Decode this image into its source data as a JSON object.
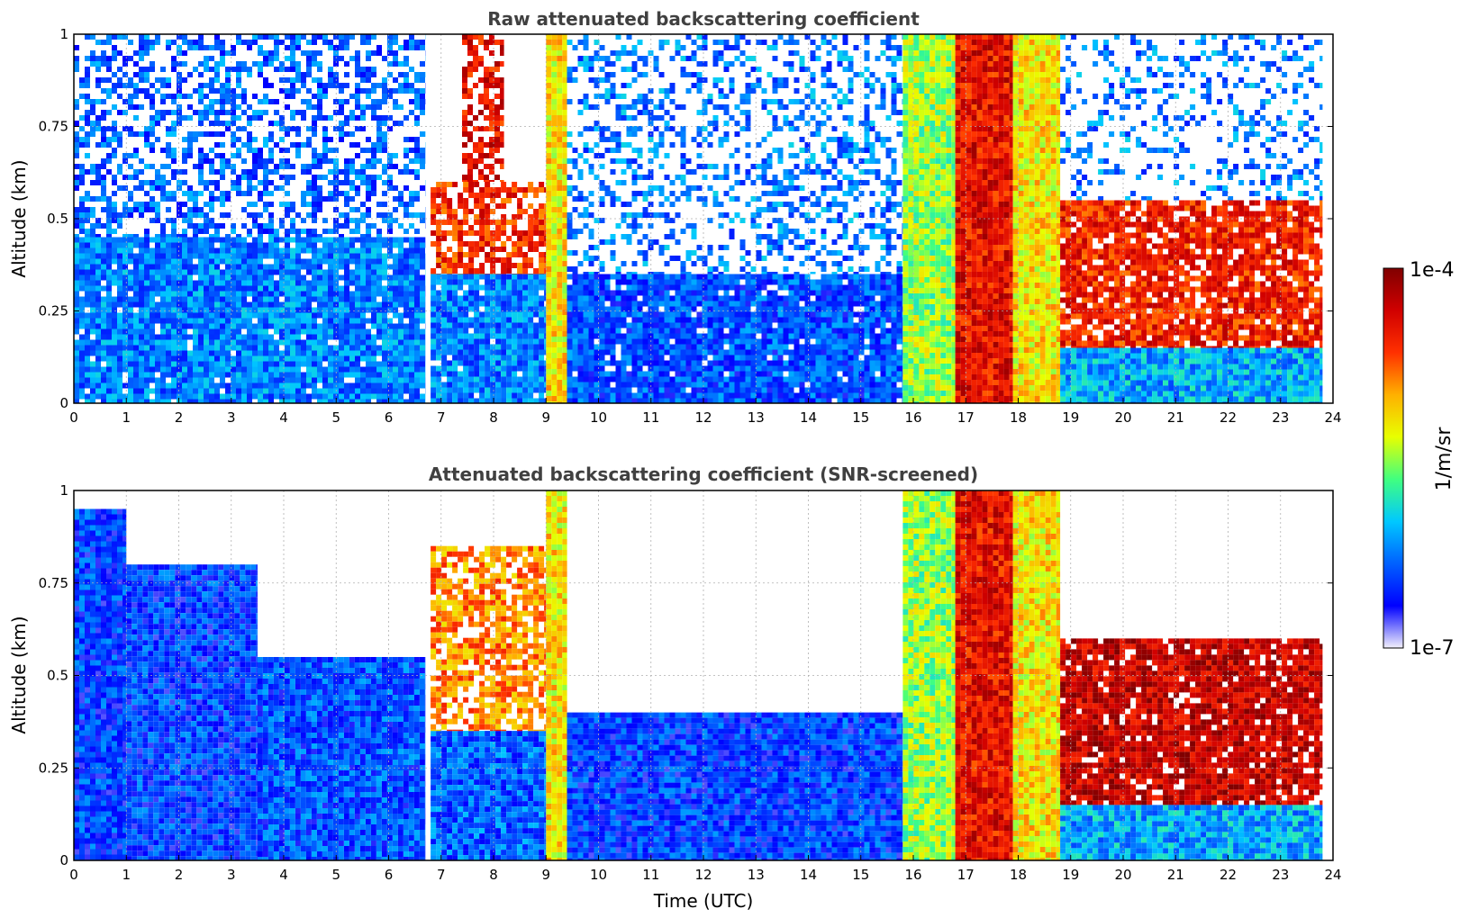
{
  "chart_data": [
    {
      "type": "heatmap",
      "title": "Raw attenuated backscattering coefficient",
      "xlabel": "",
      "ylabel": "Altitude (km)",
      "xlim": [
        0,
        24
      ],
      "ylim": [
        0,
        1
      ],
      "xticks": [
        "0",
        "1",
        "2",
        "3",
        "4",
        "5",
        "6",
        "7",
        "8",
        "9",
        "10",
        "11",
        "12",
        "13",
        "14",
        "15",
        "16",
        "17",
        "18",
        "19",
        "20",
        "21",
        "22",
        "23",
        "24"
      ],
      "yticks": [
        "0",
        "0.25",
        "0.5",
        "0.75",
        "1"
      ],
      "grid": true,
      "regions": [
        {
          "x": [
            0,
            6.7
          ],
          "y": [
            0,
            0.45
          ],
          "level": 0.25,
          "density": 0.95
        },
        {
          "x": [
            0,
            6.7
          ],
          "y": [
            0.45,
            1
          ],
          "level": 0.22,
          "density": 0.5
        },
        {
          "x": [
            6.8,
            9.0
          ],
          "y": [
            0.35,
            0.6
          ],
          "level": 0.8,
          "density": 0.7
        },
        {
          "x": [
            7.4,
            8.2
          ],
          "y": [
            0.6,
            1.0
          ],
          "level": 0.85,
          "density": 0.6
        },
        {
          "x": [
            6.8,
            9.0
          ],
          "y": [
            0,
            0.35
          ],
          "level": 0.25,
          "density": 0.95
        },
        {
          "x": [
            9.0,
            9.4
          ],
          "y": [
            0,
            1
          ],
          "level": 0.6,
          "density": 1.0
        },
        {
          "x": [
            9.4,
            15.8
          ],
          "y": [
            0,
            0.35
          ],
          "level": 0.2,
          "density": 0.95
        },
        {
          "x": [
            9.4,
            15.8
          ],
          "y": [
            0.35,
            1
          ],
          "level": 0.25,
          "density": 0.35
        },
        {
          "x": [
            15.8,
            16.8
          ],
          "y": [
            0,
            1
          ],
          "level": 0.5,
          "density": 1.0
        },
        {
          "x": [
            16.8,
            17.9
          ],
          "y": [
            0,
            1
          ],
          "level": 0.85,
          "density": 1.0
        },
        {
          "x": [
            17.9,
            18.8
          ],
          "y": [
            0,
            1
          ],
          "level": 0.6,
          "density": 1.0
        },
        {
          "x": [
            18.8,
            23.8
          ],
          "y": [
            0.15,
            0.55
          ],
          "level": 0.82,
          "density": 0.85
        },
        {
          "x": [
            18.8,
            23.8
          ],
          "y": [
            0,
            0.15
          ],
          "level": 0.3,
          "density": 1.0
        },
        {
          "x": [
            18.8,
            23.8
          ],
          "y": [
            0.55,
            1
          ],
          "level": 0.25,
          "density": 0.25
        }
      ]
    },
    {
      "type": "heatmap",
      "title": "Attenuated backscattering coefficient (SNR-screened)",
      "xlabel": "Time (UTC)",
      "ylabel": "Altitude (km)",
      "xlim": [
        0,
        24
      ],
      "ylim": [
        0,
        1
      ],
      "xticks": [
        "0",
        "1",
        "2",
        "3",
        "4",
        "5",
        "6",
        "7",
        "8",
        "9",
        "10",
        "11",
        "12",
        "13",
        "14",
        "15",
        "16",
        "17",
        "18",
        "19",
        "20",
        "21",
        "22",
        "23",
        "24"
      ],
      "yticks": [
        "0",
        "0.25",
        "0.5",
        "0.75",
        "1"
      ],
      "grid": true,
      "regions": [
        {
          "x": [
            0,
            1.0
          ],
          "y": [
            0,
            0.95
          ],
          "level": 0.18,
          "density": 1.0
        },
        {
          "x": [
            1.0,
            3.5
          ],
          "y": [
            0,
            0.8
          ],
          "level": 0.18,
          "density": 1.0
        },
        {
          "x": [
            3.5,
            6.7
          ],
          "y": [
            0,
            0.55
          ],
          "level": 0.2,
          "density": 1.0
        },
        {
          "x": [
            6.8,
            9.0
          ],
          "y": [
            0,
            0.35
          ],
          "level": 0.22,
          "density": 1.0
        },
        {
          "x": [
            6.8,
            9.0
          ],
          "y": [
            0.35,
            0.85
          ],
          "level": 0.7,
          "density": 0.7
        },
        {
          "x": [
            9.0,
            9.4
          ],
          "y": [
            0,
            1
          ],
          "level": 0.6,
          "density": 1.0
        },
        {
          "x": [
            9.4,
            15.8
          ],
          "y": [
            0,
            0.4
          ],
          "level": 0.18,
          "density": 1.0
        },
        {
          "x": [
            15.8,
            16.8
          ],
          "y": [
            0,
            1
          ],
          "level": 0.5,
          "density": 1.0
        },
        {
          "x": [
            16.8,
            17.9
          ],
          "y": [
            0,
            1
          ],
          "level": 0.85,
          "density": 1.0
        },
        {
          "x": [
            17.9,
            18.8
          ],
          "y": [
            0,
            1
          ],
          "level": 0.6,
          "density": 1.0
        },
        {
          "x": [
            18.8,
            23.8
          ],
          "y": [
            0.15,
            0.6
          ],
          "level": 0.9,
          "density": 0.9
        },
        {
          "x": [
            18.8,
            23.8
          ],
          "y": [
            0,
            0.15
          ],
          "level": 0.3,
          "density": 1.0
        }
      ]
    }
  ],
  "colorbar": {
    "label": "1/m/sr",
    "max_label": "1e-4",
    "min_label": "1e-7",
    "colormap": [
      "#f2f0fb",
      "#0000ff",
      "#0060ff",
      "#00c8ff",
      "#40ff80",
      "#e8ff00",
      "#ffb000",
      "#ff3000",
      "#d00000",
      "#800000"
    ]
  }
}
